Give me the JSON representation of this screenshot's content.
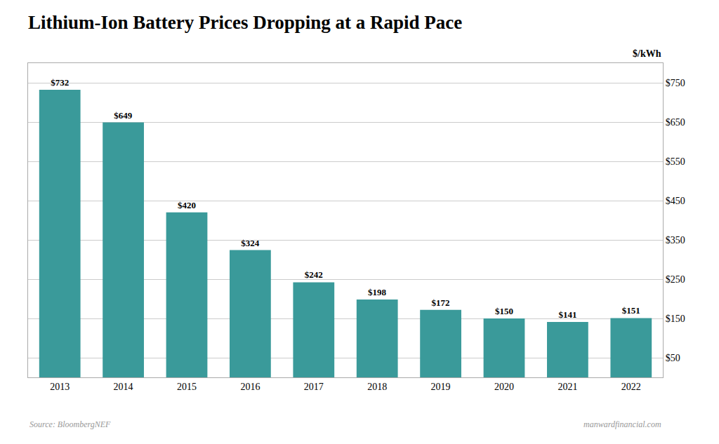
{
  "chart_data": {
    "type": "bar",
    "title": "Lithium-Ion Battery Prices Dropping at a Rapid Pace",
    "ylabel": "$/kWh",
    "categories": [
      "2013",
      "2014",
      "2015",
      "2016",
      "2017",
      "2018",
      "2019",
      "2020",
      "2021",
      "2022"
    ],
    "values": [
      732,
      649,
      420,
      324,
      242,
      198,
      172,
      150,
      141,
      151
    ],
    "value_labels": [
      "$732",
      "$649",
      "$420",
      "$324",
      "$242",
      "$198",
      "$172",
      "$150",
      "$141",
      "$151"
    ],
    "data_labels": true,
    "color": "#3a9a9a",
    "ylim": [
      0,
      800
    ],
    "yticks": [
      {
        "value": 50,
        "label": "$50"
      },
      {
        "value": 150,
        "label": "$150"
      },
      {
        "value": 250,
        "label": "$250"
      },
      {
        "value": 350,
        "label": "$350"
      },
      {
        "value": 450,
        "label": "$450"
      },
      {
        "value": 550,
        "label": "$550"
      },
      {
        "value": 650,
        "label": "$650"
      },
      {
        "value": 750,
        "label": "$750"
      }
    ],
    "grid": true,
    "annotations": [
      "Source: BloombergNEF",
      "manwardfinancial.com"
    ]
  }
}
